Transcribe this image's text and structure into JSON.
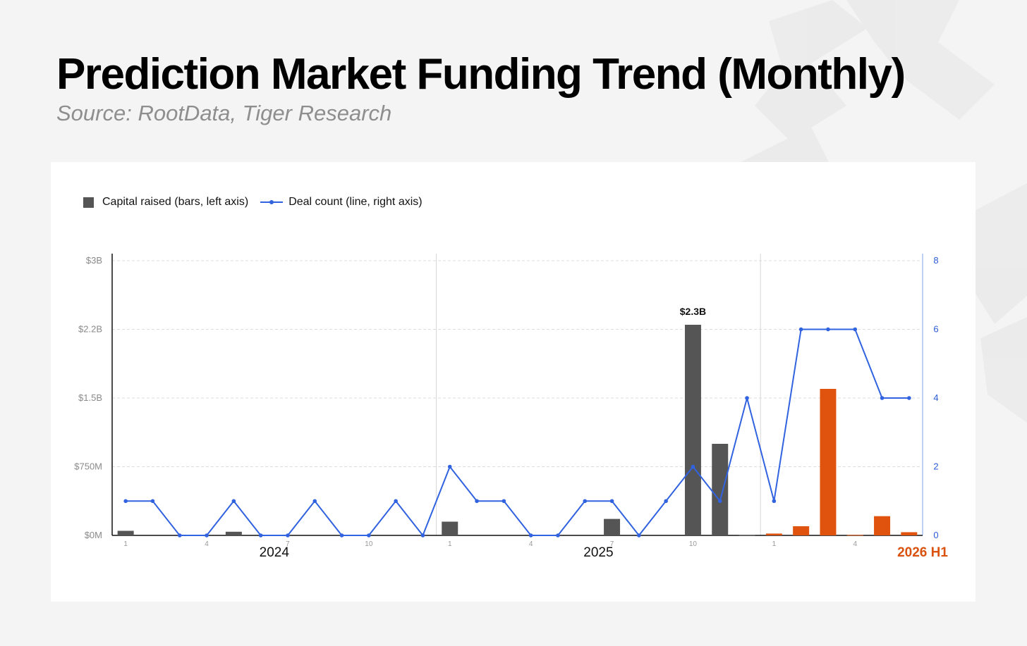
{
  "header": {
    "title": "Prediction Market Funding Trend (Monthly)",
    "subtitle": "Source: RootData, Tiger Research"
  },
  "colors": {
    "bar": "#555555",
    "bar_highlight": "#e0530f",
    "line": "#3163e0",
    "right_axis": "#2a5bd7",
    "year_highlight": "#d9520f"
  },
  "chart_data": {
    "type": "bar",
    "legend": {
      "bars_label": "Capital raised (bars, left axis)",
      "line_label": "Deal count (line, right axis)",
      "placement": "top-left"
    },
    "x": [
      "2024-01",
      "2024-02",
      "2024-03",
      "2024-04",
      "2024-05",
      "2024-06",
      "2024-07",
      "2024-08",
      "2024-09",
      "2024-10",
      "2024-11",
      "2024-12",
      "2025-01",
      "2025-02",
      "2025-03",
      "2025-04",
      "2025-05",
      "2025-06",
      "2025-07",
      "2025-08",
      "2025-09",
      "2025-10",
      "2025-11",
      "2025-12",
      "2026-01",
      "2026-02",
      "2026-03",
      "2026-04",
      "2026-05",
      "2026-06"
    ],
    "month_ticks": [
      "1",
      "",
      "",
      "4",
      "",
      "",
      "7",
      "",
      "",
      "10",
      "",
      "",
      "1",
      "",
      "",
      "4",
      "",
      "",
      "7",
      "",
      "",
      "10",
      "",
      "",
      "1",
      "",
      "",
      "4",
      "",
      ""
    ],
    "year_labels": [
      {
        "label": "2024",
        "highlight": false
      },
      {
        "label": "2025",
        "highlight": false
      },
      {
        "label": "2026 H1",
        "highlight": true
      }
    ],
    "series": [
      {
        "name": "Capital raised (bars, left axis)",
        "kind": "bar",
        "axis": "left",
        "unit": "USD millions",
        "values": [
          50,
          0,
          0,
          0,
          40,
          0,
          0,
          0,
          0,
          0,
          0,
          0,
          150,
          0,
          0,
          0,
          0,
          0,
          180,
          0,
          0,
          2300,
          1000,
          5,
          20,
          100,
          1600,
          5,
          210,
          35
        ]
      },
      {
        "name": "Deal count (line, right axis)",
        "kind": "line",
        "axis": "right",
        "values": [
          1,
          1,
          0,
          0,
          1,
          0,
          0,
          1,
          0,
          0,
          1,
          0,
          2,
          1,
          1,
          0,
          0,
          1,
          1,
          0,
          1,
          2,
          1,
          4,
          1,
          6,
          6,
          6,
          4,
          4
        ]
      }
    ],
    "y_left": {
      "ylim": [
        0,
        3000
      ],
      "ticks": [
        0,
        750,
        1500,
        2250,
        3000
      ],
      "tick_labels": [
        "$0M",
        "$750M",
        "$1.5B",
        "$2.2B",
        "$3B"
      ]
    },
    "y_right": {
      "ylim": [
        0,
        8
      ],
      "ticks": [
        0,
        2,
        4,
        6,
        8
      ],
      "tick_labels": [
        "0",
        "2",
        "4",
        "6",
        "8"
      ]
    },
    "annotations": [
      {
        "index": 21,
        "text": "$2.3B"
      }
    ],
    "grid": true
  }
}
